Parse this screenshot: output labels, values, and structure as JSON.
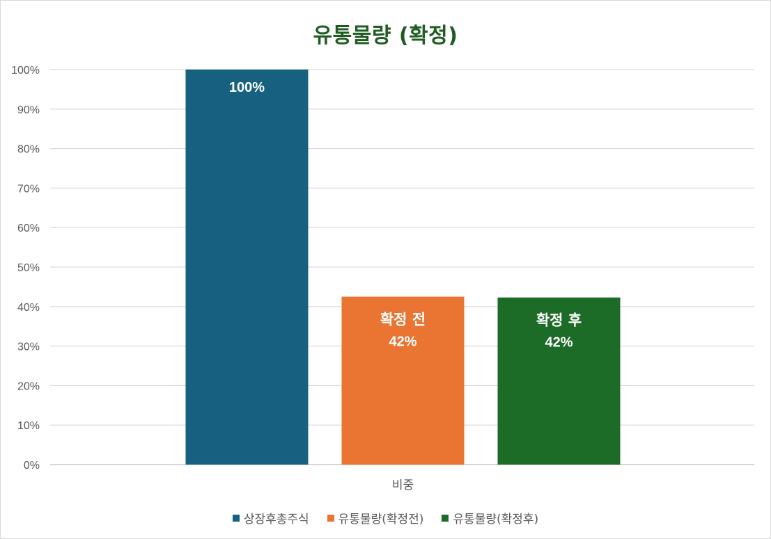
{
  "chart_data": {
    "type": "bar",
    "title": "유통물량 (확정)",
    "categories": [
      "비중"
    ],
    "ylim": [
      0,
      100
    ],
    "yticks": [
      0,
      10,
      20,
      30,
      40,
      50,
      60,
      70,
      80,
      90,
      100
    ],
    "ytick_suffix": "%",
    "grid": true,
    "legend_position": "bottom",
    "series": [
      {
        "name": "상장후총주식",
        "values": [
          100
        ],
        "label": "",
        "value_label": "100%",
        "color": "#17607f"
      },
      {
        "name": "유통물량(확정전)",
        "values": [
          42.5
        ],
        "label": "확정 전",
        "value_label": "42%",
        "color": "#ea7432"
      },
      {
        "name": "유통물량(확정후)",
        "values": [
          42.3
        ],
        "label": "확정 후",
        "value_label": "42%",
        "color": "#1c6b27"
      }
    ]
  }
}
